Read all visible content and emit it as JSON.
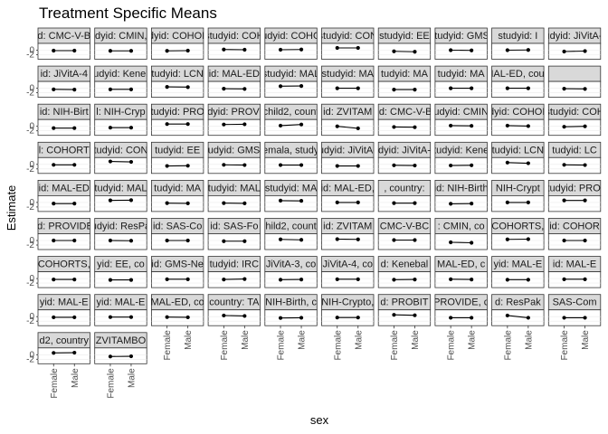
{
  "chart_data": {
    "type": "scatter",
    "title": "Treatment Specific Means",
    "xlabel": "sex",
    "ylabel": "Estimate",
    "categories": [
      "Female",
      "Male"
    ],
    "y_ticks": [
      "0",
      "-2"
    ],
    "ylim": [
      -4,
      3
    ],
    "grid": true,
    "facet_cols": 10,
    "panels": [
      {
        "strip": "d: CMC-V-B",
        "values": [
          -0.2,
          -0.2
        ]
      },
      {
        "strip": "tudyid: CMIN, c",
        "values": [
          -0.3,
          -0.3
        ]
      },
      {
        "strip": "tudyid: COHORT",
        "values": [
          -0.3,
          -0.2
        ]
      },
      {
        "strip": "studyid: COH",
        "values": [
          0.3,
          0.2
        ]
      },
      {
        "strip": "studyid: COHOR",
        "values": [
          0.2,
          0.3
        ]
      },
      {
        "strip": "studyid: CON",
        "values": [
          1.0,
          1.0
        ]
      },
      {
        "strip": "studyid: EE",
        "values": [
          -0.5,
          -0.7
        ]
      },
      {
        "strip": "studyid: GMS-",
        "values": [
          0.0,
          -0.1
        ]
      },
      {
        "strip": "studyid: I",
        "values": [
          0.0,
          0.1
        ]
      },
      {
        "strip": "tudyid: JiVitA-3",
        "values": [
          -0.6,
          -0.4
        ]
      },
      {
        "strip": "id: JiVitA-4",
        "values": [
          -0.5,
          -0.6
        ]
      },
      {
        "strip": "udyid: Kenel",
        "values": [
          -0.5,
          -0.5
        ]
      },
      {
        "strip": "tudyid: LCN",
        "values": [
          0.6,
          0.5
        ]
      },
      {
        "strip": "id: MAL-ED",
        "values": [
          -0.2,
          -0.3
        ]
      },
      {
        "strip": "studyid: MAL",
        "values": [
          0.9,
          1.0
        ]
      },
      {
        "strip": "studyid: MA",
        "values": [
          0.0,
          0.0
        ]
      },
      {
        "strip": "tudyid: MA",
        "values": [
          -0.6,
          -0.6
        ]
      },
      {
        "strip": "tudyid: MA",
        "values": [
          0.0,
          0.0
        ]
      },
      {
        "strip": "id: MAL-ED, country:",
        "values": [
          0.0,
          0.0
        ]
      },
      {
        "strip": "",
        "values": [
          -0.2,
          -0.3
        ]
      },
      {
        "strip": "id: NIH-Birt",
        "values": [
          -0.8,
          -0.8
        ]
      },
      {
        "strip": "l: NIH-Cryp",
        "values": [
          -0.6,
          -0.6
        ]
      },
      {
        "strip": "tudyid: PRO",
        "values": [
          1.0,
          1.0
        ]
      },
      {
        "strip": "tudyid: PROVID",
        "values": [
          0.8,
          0.9
        ]
      },
      {
        "strip": "child2, count",
        "values": [
          0.3,
          0.8
        ]
      },
      {
        "strip": "id: ZVITAM",
        "values": [
          0.0,
          -0.9
        ]
      },
      {
        "strip": "id: CMC-V-B",
        "values": [
          -0.3,
          -0.4
        ]
      },
      {
        "strip": "tudyid: CMIN,",
        "values": [
          0.3,
          0.2
        ]
      },
      {
        "strip": "tudyid: COHORT",
        "values": [
          0.3,
          0.1
        ]
      },
      {
        "strip": "studyid: COH",
        "values": [
          -0.2,
          0.0
        ]
      },
      {
        "strip": "l: COHORT",
        "values": [
          -0.2,
          -0.2
        ]
      },
      {
        "strip": "tudyid: CON",
        "values": [
          1.3,
          1.1
        ]
      },
      {
        "strip": "tudyid: EE",
        "values": [
          -0.7,
          -0.6
        ]
      },
      {
        "strip": "tudyid: GMS-",
        "values": [
          -0.2,
          -0.3
        ]
      },
      {
        "strip": "Guatemala, studyid: IF",
        "values": [
          -0.3,
          -0.3
        ]
      },
      {
        "strip": "studyid: JiVitA-3,",
        "values": [
          -0.7,
          -0.7
        ]
      },
      {
        "strip": "udyid: JiVitA-4",
        "values": [
          -0.4,
          -0.5
        ]
      },
      {
        "strip": "tudyid: Kene",
        "values": [
          -0.5,
          -0.4
        ]
      },
      {
        "strip": "tudyid: LCN",
        "values": [
          0.8,
          0.5
        ]
      },
      {
        "strip": "tudyid: LC",
        "values": [
          -0.2,
          -0.3
        ]
      },
      {
        "strip": "id: MAL-ED",
        "values": [
          -0.5,
          -0.5
        ]
      },
      {
        "strip": "tudyid: MAL",
        "values": [
          0.9,
          1.0
        ]
      },
      {
        "strip": "tudyid: MA",
        "values": [
          -0.3,
          -0.4
        ]
      },
      {
        "strip": "tudyid: MAL",
        "values": [
          -0.3,
          -0.4
        ]
      },
      {
        "strip": "studyid: MA",
        "values": [
          0.8,
          0.7
        ]
      },
      {
        "strip": "id: MAL-ED,",
        "values": [
          0.0,
          0.0
        ]
      },
      {
        "strip": ", country:",
        "values": [
          -0.3,
          -0.3
        ]
      },
      {
        "strip": "id: NIH-Birth",
        "values": [
          -0.6,
          -0.5
        ]
      },
      {
        "strip": "NIH-Crypt",
        "values": [
          0.0,
          0.0
        ]
      },
      {
        "strip": "studyid: PROB",
        "values": [
          0.9,
          0.9
        ]
      },
      {
        "strip": "id: PROVIDE",
        "values": [
          0.0,
          0.0
        ]
      },
      {
        "strip": "udyid: ResPa",
        "values": [
          0.0,
          -0.1
        ]
      },
      {
        "strip": "id: SAS-Co",
        "values": [
          0.0,
          0.0
        ]
      },
      {
        "strip": "id: SAS-Fo",
        "values": [
          -0.3,
          -0.3
        ]
      },
      {
        "strip": "hild2, count",
        "values": [
          0.5,
          0.3
        ]
      },
      {
        "strip": "id: ZVITAM",
        "values": [
          0.6,
          0.5
        ]
      },
      {
        "strip": "CMC-V-BC",
        "values": [
          0.2,
          0.2
        ]
      },
      {
        "strip": ": CMIN, co",
        "values": [
          -0.8,
          -1.0
        ]
      },
      {
        "strip": "COHORTS,",
        "values": [
          0.5,
          0.6
        ]
      },
      {
        "strip": "id: COHOR",
        "values": [
          0.0,
          0.0
        ]
      },
      {
        "strip": "COHORTS,",
        "values": [
          -0.4,
          -0.4
        ]
      },
      {
        "strip": "yid: EE, co",
        "values": [
          -0.6,
          -0.6
        ]
      },
      {
        "strip": "id: GMS-Ne",
        "values": [
          -0.3,
          -0.3
        ]
      },
      {
        "strip": "tudyid: IRC",
        "values": [
          -0.4,
          -0.2
        ]
      },
      {
        "strip": "JiVitA-3, co",
        "values": [
          -0.5,
          -0.4
        ]
      },
      {
        "strip": "JiVitA-4, co",
        "values": [
          -0.3,
          -0.3
        ]
      },
      {
        "strip": "d: Kenebal",
        "values": [
          -0.5,
          -0.4
        ]
      },
      {
        "strip": "MAL-ED, c",
        "values": [
          -0.3,
          -0.4
        ]
      },
      {
        "strip": "yid: MAL-E",
        "values": [
          -0.5,
          -0.5
        ]
      },
      {
        "strip": "id: MAL-E",
        "values": [
          -0.3,
          -0.3
        ]
      },
      {
        "strip": "yid: MAL-E",
        "values": [
          -0.3,
          -0.3
        ]
      },
      {
        "strip": "yid: MAL-E",
        "values": [
          -0.2,
          -0.2
        ]
      },
      {
        "strip": "MAL-ED, co",
        "values": [
          -0.2,
          -0.3
        ]
      },
      {
        "strip": "country: TA",
        "values": [
          0.5,
          0.3
        ]
      },
      {
        "strip": "NIH-Birth, c",
        "values": [
          -0.6,
          -0.5
        ]
      },
      {
        "strip": "NIH-Crypto,",
        "values": [
          -0.4,
          -0.4
        ]
      },
      {
        "strip": "d: PROBIT",
        "values": [
          0.8,
          0.6
        ]
      },
      {
        "strip": "PROVIDE, c",
        "values": [
          -0.5,
          -0.5
        ]
      },
      {
        "strip": "d: ResPak",
        "values": [
          0.5,
          -0.5
        ]
      },
      {
        "strip": "SAS-Com",
        "values": [
          -0.5,
          -0.5
        ]
      },
      {
        "strip": "d2, country",
        "values": [
          0.8,
          0.9
        ]
      },
      {
        "strip": "ZVITAMBO",
        "values": [
          -0.8,
          -0.7
        ]
      }
    ]
  }
}
